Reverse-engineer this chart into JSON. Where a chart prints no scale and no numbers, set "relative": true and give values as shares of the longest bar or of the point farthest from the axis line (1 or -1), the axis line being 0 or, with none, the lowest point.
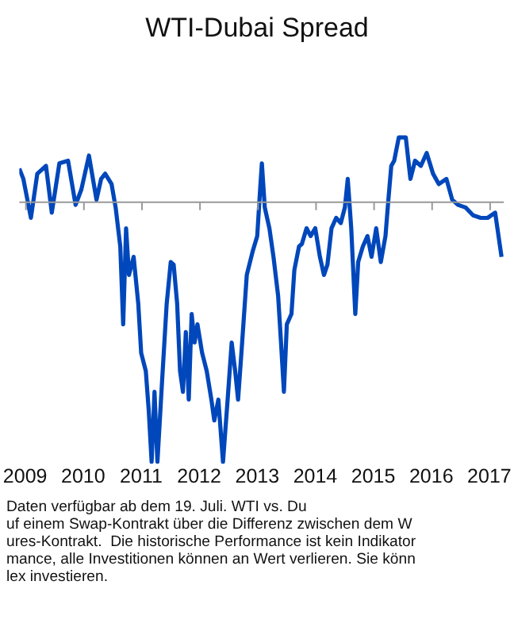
{
  "chart_data": {
    "type": "line",
    "title": "WTI-Dubai Spread",
    "relative": true,
    "grid": false,
    "legend": false,
    "marker": "none",
    "line_style": "solid",
    "xlim": [
      2008.9,
      2017.25
    ],
    "xticks": [
      2009,
      2010,
      2011,
      2012,
      2013,
      2014,
      2015,
      2016,
      2017
    ],
    "x": [
      2008.9,
      2008.97,
      2009.1,
      2009.21,
      2009.36,
      2009.46,
      2009.59,
      2009.74,
      2009.87,
      2009.97,
      2010.1,
      2010.23,
      2010.31,
      2010.38,
      2010.49,
      2010.56,
      2010.64,
      2010.69,
      2010.74,
      2010.79,
      2010.87,
      2010.95,
      2011.0,
      2011.08,
      2011.13,
      2011.18,
      2011.23,
      2011.28,
      2011.36,
      2011.44,
      2011.51,
      2011.56,
      2011.62,
      2011.67,
      2011.72,
      2011.77,
      2011.82,
      2011.87,
      2011.92,
      2011.97,
      2012.05,
      2012.13,
      2012.21,
      2012.26,
      2012.33,
      2012.41,
      2012.49,
      2012.56,
      2012.62,
      2012.67,
      2012.74,
      2012.82,
      2012.92,
      2013.0,
      2013.05,
      2013.08,
      2013.13,
      2013.21,
      2013.28,
      2013.36,
      2013.41,
      2013.46,
      2013.51,
      2013.59,
      2013.64,
      2013.72,
      2013.77,
      2013.85,
      2013.92,
      2014.0,
      2014.08,
      2014.15,
      2014.21,
      2014.28,
      2014.36,
      2014.44,
      2014.51,
      2014.56,
      2014.62,
      2014.69,
      2014.74,
      2014.82,
      2014.9,
      2014.97,
      2015.05,
      2015.13,
      2015.21,
      2015.26,
      2015.31,
      2015.36,
      2015.44,
      2015.56,
      2015.64,
      2015.72,
      2015.82,
      2015.92,
      2016.03,
      2016.13,
      2016.26,
      2016.36,
      2016.46,
      2016.59,
      2016.72,
      2016.85,
      2016.97,
      2017.1,
      2017.21
    ],
    "series": [
      {
        "color": "#0047bb",
        "values": [
          0.13,
          0.09,
          -0.06,
          0.11,
          0.14,
          -0.04,
          0.15,
          0.16,
          -0.01,
          0.05,
          0.18,
          0.01,
          0.09,
          0.11,
          0.07,
          -0.02,
          -0.17,
          -0.47,
          -0.1,
          -0.28,
          -0.21,
          -0.39,
          -0.58,
          -0.65,
          -0.8,
          -1,
          -0.73,
          -1,
          -0.69,
          -0.39,
          -0.23,
          -0.24,
          -0.39,
          -0.65,
          -0.73,
          -0.5,
          -0.76,
          -0.43,
          -0.54,
          -0.47,
          -0.58,
          -0.65,
          -0.76,
          -0.84,
          -0.76,
          -1,
          -0.76,
          -0.54,
          -0.65,
          -0.76,
          -0.54,
          -0.28,
          -0.19,
          -0.13,
          0.05,
          0.15,
          -0.02,
          -0.1,
          -0.21,
          -0.36,
          -0.54,
          -0.73,
          -0.47,
          -0.43,
          -0.26,
          -0.17,
          -0.16,
          -0.1,
          -0.13,
          -0.1,
          -0.21,
          -0.28,
          -0.24,
          -0.1,
          -0.06,
          -0.08,
          -0.02,
          0.09,
          -0.1,
          -0.43,
          -0.23,
          -0.17,
          -0.13,
          -0.21,
          -0.1,
          -0.23,
          -0.13,
          0.01,
          0.14,
          0.16,
          0.25,
          0.25,
          0.09,
          0.16,
          0.14,
          0.19,
          0.11,
          0.07,
          0.09,
          0.01,
          -0.01,
          -0.02,
          -0.05,
          -0.06,
          -0.06,
          -0.04,
          -0.21
        ]
      }
    ],
    "annotations": [
      "Daten verfügbar ab dem 19. Juli. WTI vs. Du",
      "uf einem Swap-Kontrakt über die Differenz zwischen dem W",
      "ures-Kontrakt.  Die historische Performance ist kein Indikator",
      "mance, alle Investitionen können an Wert verlieren. Sie könn",
      "lex investieren."
    ]
  }
}
